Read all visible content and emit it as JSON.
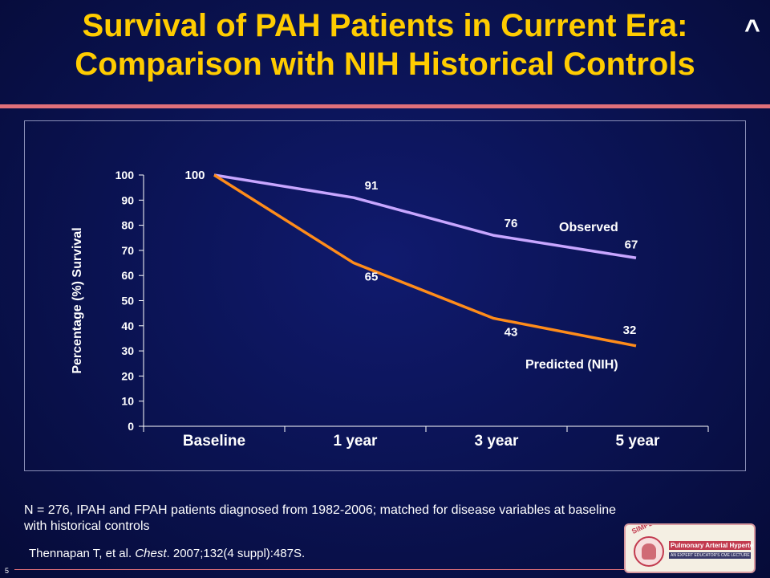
{
  "slide": {
    "title_line1": "Survival of PAH Patients in Current Era:",
    "title_line2": "Comparison with NIH Historical Controls",
    "caret": "^",
    "footnote": "N = 276, IPAH and FPAH patients diagnosed from 1982-2006; matched for disease variables at baseline with historical controls",
    "citation_authors": "Thennapan T, et al.",
    "citation_journal": "Chest",
    "citation_details": ". 2007;132(4 suppl):487S.",
    "slide_number": "5",
    "logo": {
      "arc_text": "SIMPLY SPEAKING:",
      "line1": "Pulmonary Arterial Hypertension",
      "line2": "AN EXPERT EDUCATOR'S CME LECTURE SERIES"
    }
  },
  "colors": {
    "title": "#ffcc00",
    "observed": "#c8a6ff",
    "predicted": "#ff8c1a",
    "axis": "#ffffff"
  },
  "chart_data": {
    "type": "line",
    "categories": [
      "Baseline",
      "1 year",
      "3 year",
      "5 year"
    ],
    "series": [
      {
        "name": "Observed",
        "values": [
          100,
          91,
          76,
          67
        ]
      },
      {
        "name": "Predicted (NIH)",
        "values": [
          100,
          65,
          43,
          32
        ]
      }
    ],
    "ylabel": "Percentage (%) Survival",
    "ylim": [
      0,
      100
    ],
    "yticks": [
      0,
      10,
      20,
      30,
      40,
      50,
      60,
      70,
      80,
      90,
      100
    ],
    "legend": "inline labels"
  }
}
